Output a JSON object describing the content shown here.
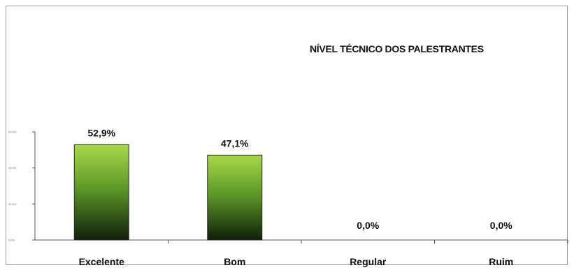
{
  "chart_data": {
    "type": "bar",
    "title": "NÍVEL TÉCNICO DOS PALESTRANTES",
    "categories": [
      "Excelente",
      "Bom",
      "Regular",
      "Ruim"
    ],
    "values": [
      52.9,
      47.1,
      0.0,
      0.0
    ],
    "data_labels": [
      "52,9%",
      "47,1%",
      "0,0%",
      "0,0%"
    ],
    "y_ticks": [
      0,
      20,
      40,
      60
    ],
    "ylim": [
      0,
      60
    ],
    "grid": false,
    "legend": "none",
    "colors": {
      "bar_top": "#a8d84a",
      "bar_mid": "#5f9a28",
      "bar_bottom": "#0f1f0a",
      "bar_border": "#2a2a2a",
      "axis": "#555555"
    }
  }
}
